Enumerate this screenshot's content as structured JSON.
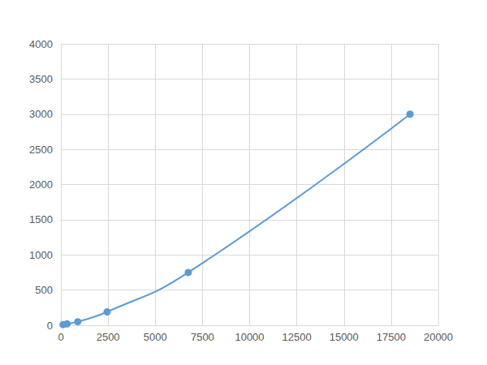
{
  "chart_data": {
    "type": "line",
    "x": [
      119,
      326,
      893,
      2450,
      6750,
      18500
    ],
    "values": [
      10,
      20,
      50,
      190,
      750,
      3000
    ],
    "color": "#5b9bd5",
    "marker": "circle",
    "line_style": "smooth",
    "xlim": [
      0,
      20000
    ],
    "xticks": [
      0,
      2500,
      5000,
      7500,
      10000,
      12500,
      15000,
      17500,
      20000
    ],
    "ylim": [
      0,
      4000
    ],
    "yticks": [
      0,
      500,
      1000,
      1500,
      2000,
      2500,
      3000,
      3500,
      4000
    ],
    "grid": true
  }
}
